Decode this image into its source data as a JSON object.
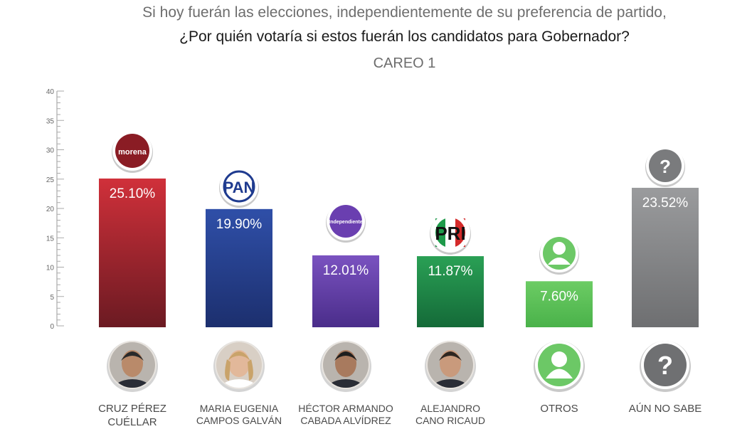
{
  "header": {
    "question_line1": "Si hoy fuerán las elecciones, independientemente de su preferencia de partido,",
    "question_line2": "¿Por quién votaría si estos fuerán los candidatos para Gobernador?",
    "subtitle": "CAREO 1"
  },
  "chart_data": {
    "type": "bar",
    "title": "CAREO 1",
    "ylim": [
      0,
      40
    ],
    "yticks": [
      "0",
      "5",
      "10",
      "15",
      "20",
      "25",
      "30",
      "35",
      "40"
    ],
    "categories": [
      "CRUZ PÉREZ CUÉLLAR",
      "MARIA EUGENIA CAMPOS GALVÁN",
      "HÉCTOR ARMANDO CABADA ALVÍDREZ",
      "ALEJANDRO CANO RICAUD",
      "OTROS",
      "AÚN NO SABE"
    ],
    "values": [
      25.1,
      19.9,
      12.01,
      11.87,
      7.6,
      23.52
    ],
    "labels": [
      "25.10%",
      "19.90%",
      "12.01%",
      "11.87%",
      "7.60%",
      "23.52%"
    ],
    "party_logos": [
      "morena",
      "PAN",
      "Independiente",
      "PRI",
      "user-icon",
      "question-icon"
    ],
    "colors": [
      "#b5232e",
      "#26418f",
      "#6a45a8",
      "#1e8a4a",
      "#5cc15a",
      "#8a8b8d"
    ]
  },
  "candidates": [
    {
      "line1": "CRUZ PÉREZ",
      "line2": "CUÉLLAR"
    },
    {
      "line1": "MARIA EUGENIA",
      "line2": "CAMPOS GALVÁN"
    },
    {
      "line1": "HÉCTOR ARMANDO",
      "line2": "CABADA ALVÍDREZ"
    },
    {
      "line1": "ALEJANDRO",
      "line2": "CANO RICAUD"
    },
    {
      "line1": "OTROS",
      "line2": ""
    },
    {
      "line1": "AÚN NO SABE",
      "line2": ""
    }
  ]
}
